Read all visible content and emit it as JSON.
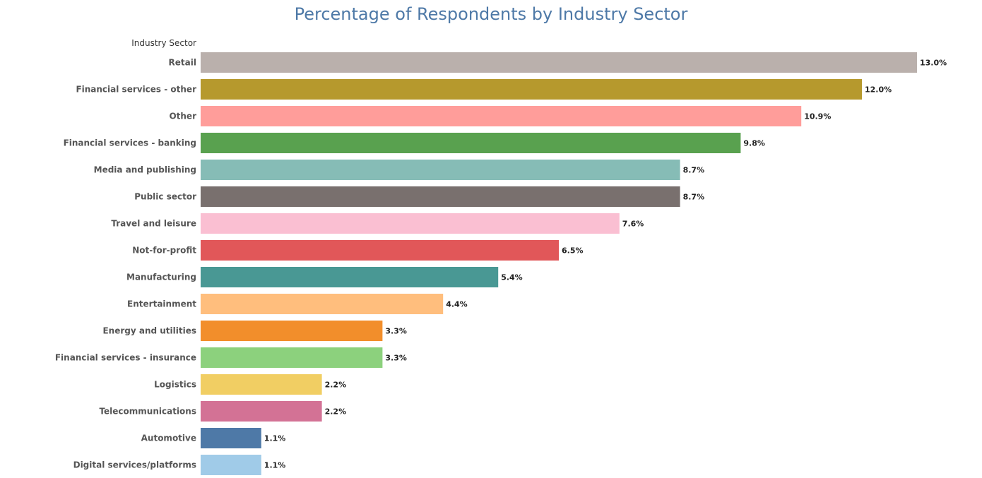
{
  "chart_data": {
    "type": "bar",
    "orientation": "horizontal",
    "title": "Percentage of Respondents by Industry Sector",
    "ylabel": "Industry Sector",
    "xlabel": "",
    "value_suffix": "%",
    "grid": false,
    "xlim": [
      0,
      13.0
    ],
    "categories": [
      "Retail",
      "Financial services - other",
      "Other",
      "Financial services - banking",
      "Media and publishing",
      "Public sector",
      "Travel and leisure",
      "Not-for-profit",
      "Manufacturing",
      "Entertainment",
      "Energy and utilities",
      "Financial services - insurance",
      "Logistics",
      "Telecommunications",
      "Automotive",
      "Digital services/platforms"
    ],
    "values": [
      13.0,
      12.0,
      10.9,
      9.8,
      8.7,
      8.7,
      7.6,
      6.5,
      5.4,
      4.4,
      3.3,
      3.3,
      2.2,
      2.2,
      1.1,
      1.1
    ],
    "value_labels": [
      "13.0%",
      "12.0%",
      "10.9%",
      "9.8%",
      "8.7%",
      "8.7%",
      "7.6%",
      "6.5%",
      "5.4%",
      "4.4%",
      "3.3%",
      "3.3%",
      "2.2%",
      "2.2%",
      "1.1%",
      "1.1%"
    ],
    "colors": [
      "#bab0ac",
      "#b6992d",
      "#ff9d9a",
      "#59a14f",
      "#86bcb6",
      "#79706e",
      "#fabfd2",
      "#e15759",
      "#499894",
      "#ffbe7d",
      "#f28e2b",
      "#8cd17d",
      "#f1ce63",
      "#d37295",
      "#4e79a7",
      "#a0cbe8"
    ]
  },
  "title_color": "#4e79a7"
}
